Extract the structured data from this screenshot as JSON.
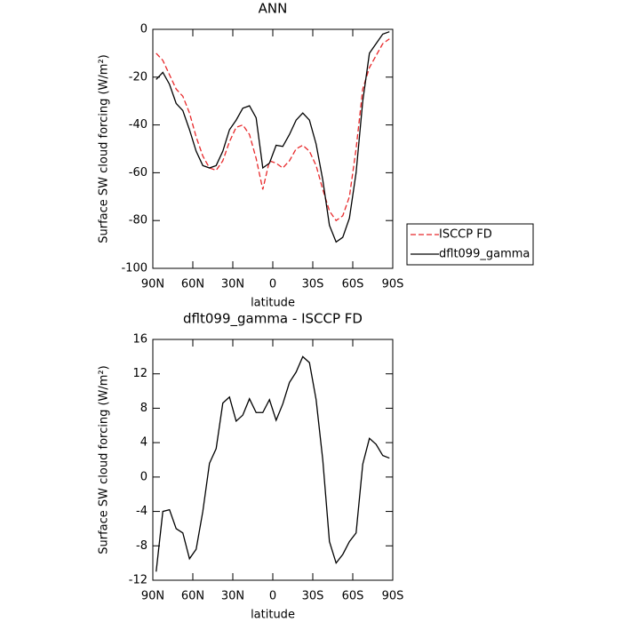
{
  "chart_data": [
    {
      "type": "line",
      "title": "ANN",
      "xlabel": "latitude",
      "ylabel": "Surface SW cloud forcing (W/m²)",
      "x": [
        87.5,
        82.5,
        77.5,
        72.5,
        67.5,
        62.5,
        57.5,
        52.5,
        47.5,
        42.5,
        37.5,
        32.5,
        27.5,
        22.5,
        17.5,
        12.5,
        7.5,
        2.5,
        -2.5,
        -7.5,
        -12.5,
        -17.5,
        -22.5,
        -27.5,
        -32.5,
        -37.5,
        -42.5,
        -47.5,
        -52.5,
        -57.5,
        -62.5,
        -67.5,
        -72.5,
        -77.5,
        -82.5,
        -87.5
      ],
      "series": [
        {
          "name": "ISCCP FD",
          "color": "#e8282a",
          "style": "dashed",
          "values": [
            -10,
            -13,
            -19,
            -25,
            -28,
            -35,
            -45,
            -53,
            -58,
            -59,
            -55,
            -47,
            -41,
            -40,
            -44,
            -54,
            -67,
            -55,
            -56,
            -58,
            -55,
            -50,
            -48.5,
            -51,
            -57,
            -67,
            -76,
            -80,
            -78,
            -70,
            -50,
            -25,
            -16,
            -11,
            -6,
            -4
          ]
        },
        {
          "name": "dflt099_gamma",
          "color": "#000000",
          "style": "solid",
          "values": [
            -21,
            -18,
            -23,
            -31,
            -34,
            -42,
            -51,
            -57,
            -58,
            -57,
            -51,
            -42,
            -38,
            -33,
            -32,
            -37,
            -58,
            -56,
            -48.5,
            -49,
            -44,
            -38,
            -35,
            -38,
            -48,
            -63,
            -82,
            -89,
            -87,
            -79,
            -60,
            -30,
            -10,
            -6,
            -2,
            -1
          ]
        }
      ],
      "xlim": [
        90,
        -90
      ],
      "xticks": [
        {
          "value": 90,
          "label": "90N"
        },
        {
          "value": 60,
          "label": "60N"
        },
        {
          "value": 30,
          "label": "30N"
        },
        0,
        {
          "value": -30,
          "label": "30S"
        },
        {
          "value": -60,
          "label": "60S"
        },
        {
          "value": -90,
          "label": "90S"
        }
      ],
      "ylim": [
        -100,
        0
      ],
      "yticks": [
        -100,
        -80,
        -60,
        -40,
        -20,
        0
      ],
      "legend": "outside-right"
    },
    {
      "type": "line",
      "title": "dflt099_gamma - ISCCP FD",
      "xlabel": "latitude",
      "ylabel": "Surface SW cloud forcing (W/m²)",
      "x": [
        87.5,
        82.5,
        77.5,
        72.5,
        67.5,
        62.5,
        57.5,
        52.5,
        47.5,
        42.5,
        37.5,
        32.5,
        27.5,
        22.5,
        17.5,
        12.5,
        7.5,
        2.5,
        -2.5,
        -7.5,
        -12.5,
        -17.5,
        -22.5,
        -27.5,
        -32.5,
        -37.5,
        -42.5,
        -47.5,
        -52.5,
        -57.5,
        -62.5,
        -67.5,
        -72.5,
        -77.5,
        -82.5,
        -87.5
      ],
      "values": [
        -11,
        -4,
        -3.8,
        -6,
        -6.5,
        -9.5,
        -8.4,
        -4,
        1.6,
        3.3,
        8.6,
        9.3,
        6.5,
        7.2,
        9.1,
        7.5,
        7.5,
        9,
        6.6,
        8.5,
        11,
        12.2,
        14,
        13.3,
        9,
        2,
        -7.5,
        -10,
        -9,
        -7.5,
        -6.5,
        1.5,
        4.5,
        3.8,
        2.5,
        2.2
      ],
      "color": "#000000",
      "xlim": [
        90,
        -90
      ],
      "xticks": [
        {
          "value": 90,
          "label": "90N"
        },
        {
          "value": 60,
          "label": "60N"
        },
        {
          "value": 30,
          "label": "30N"
        },
        0,
        {
          "value": -30,
          "label": "30S"
        },
        {
          "value": -60,
          "label": "60S"
        },
        {
          "value": -90,
          "label": "90S"
        }
      ],
      "ylim": [
        -12,
        16
      ],
      "yticks": [
        -12,
        -8,
        -4,
        0,
        4,
        8,
        12,
        16
      ]
    }
  ]
}
